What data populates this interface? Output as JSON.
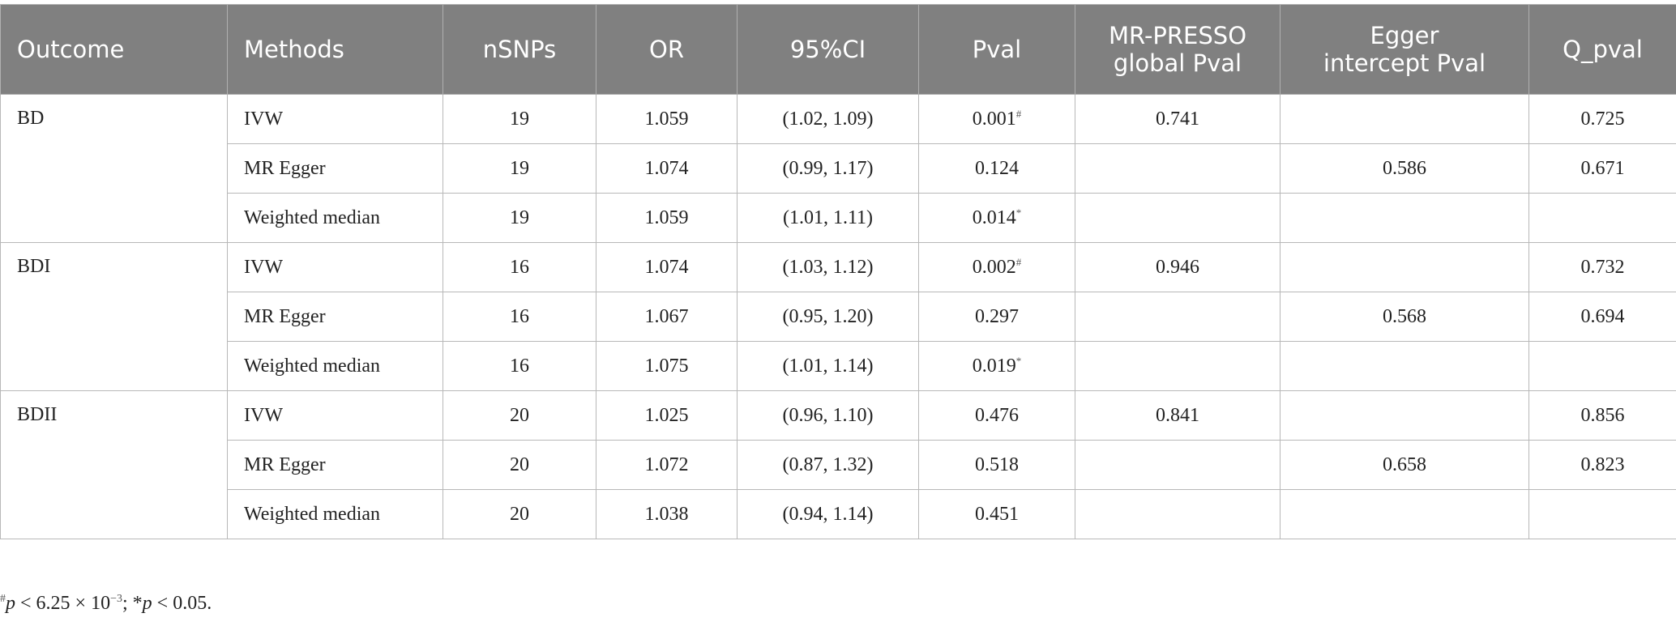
{
  "table": {
    "header": [
      [
        "Outcome"
      ],
      [
        "Methods"
      ],
      [
        "nSNPs"
      ],
      [
        "OR"
      ],
      [
        "95%CI"
      ],
      [
        "Pval"
      ],
      [
        "MR-PRESSO",
        "global Pval"
      ],
      [
        "Egger",
        "intercept Pval"
      ],
      [
        "Q_pval"
      ]
    ],
    "groups": [
      {
        "outcome": "BD",
        "rows": [
          {
            "method": "IVW",
            "nsnps": "19",
            "or": "1.059",
            "ci": "(1.02, 1.09)",
            "pval": "0.001",
            "pval_sup": "#",
            "presso": "0.741",
            "q": "0.725"
          },
          {
            "method": "MR Egger",
            "nsnps": "19",
            "or": "1.074",
            "ci": "(0.99, 1.17)",
            "pval": "0.124",
            "egger": "0.586",
            "q": "0.671"
          },
          {
            "method": "Weighted median",
            "nsnps": "19",
            "or": "1.059",
            "ci": "(1.01, 1.11)",
            "pval": "0.014",
            "pval_sup": "*"
          }
        ]
      },
      {
        "outcome": "BDI",
        "rows": [
          {
            "method": "IVW",
            "nsnps": "16",
            "or": "1.074",
            "ci": "(1.03, 1.12)",
            "pval": "0.002",
            "pval_sup": "#",
            "presso": "0.946",
            "q": "0.732"
          },
          {
            "method": "MR Egger",
            "nsnps": "16",
            "or": "1.067",
            "ci": "(0.95, 1.20)",
            "pval": "0.297",
            "egger": "0.568",
            "q": "0.694"
          },
          {
            "method": "Weighted median",
            "nsnps": "16",
            "or": "1.075",
            "ci": "(1.01, 1.14)",
            "pval": "0.019",
            "pval_sup": "*"
          }
        ]
      },
      {
        "outcome": "BDII",
        "rows": [
          {
            "method": "IVW",
            "nsnps": "20",
            "or": "1.025",
            "ci": "(0.96, 1.10)",
            "pval": "0.476",
            "presso": "0.841",
            "q": "0.856"
          },
          {
            "method": "MR Egger",
            "nsnps": "20",
            "or": "1.072",
            "ci": "(0.87, 1.32)",
            "pval": "0.518",
            "egger": "0.658",
            "q": "0.823"
          },
          {
            "method": "Weighted median",
            "nsnps": "20",
            "or": "1.038",
            "ci": "(0.94, 1.14)",
            "pval": "0.451"
          }
        ]
      }
    ]
  },
  "footnote": {
    "mark1": "#",
    "p1": "p",
    "text1": " < 6.25 × 10",
    "exp": "−3",
    "text2": "; *",
    "p2": "p",
    "text3": " < 0.05."
  }
}
